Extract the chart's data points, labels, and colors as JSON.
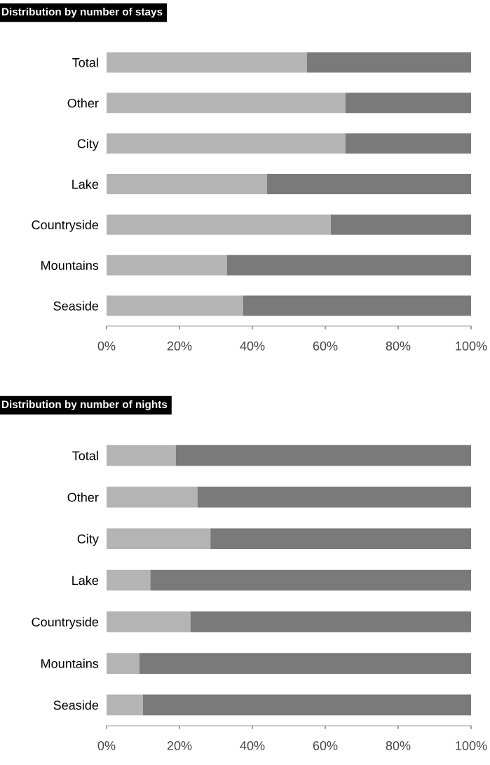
{
  "chart_data": [
    {
      "type": "bar",
      "orientation": "horizontal",
      "stacked": true,
      "title": "Distribution by number of stays",
      "categories": [
        "Total",
        "Other",
        "City",
        "Lake",
        "Countryside",
        "Mountains",
        "Seaside"
      ],
      "series": [
        {
          "color": "#b4b4b4",
          "values": [
            55,
            65.5,
            65.5,
            44,
            61.5,
            33,
            37.5
          ]
        },
        {
          "color": "#7a7a7a",
          "values": [
            45,
            34.5,
            34.5,
            56,
            38.5,
            67,
            62.5
          ]
        }
      ],
      "xlim": [
        0,
        100
      ],
      "xticks": [
        {
          "value": 0,
          "label": "0%"
        },
        {
          "value": 20,
          "label": "20%"
        },
        {
          "value": 40,
          "label": "40%"
        },
        {
          "value": 60,
          "label": "60%"
        },
        {
          "value": 80,
          "label": "80%"
        },
        {
          "value": 100,
          "label": "100%"
        }
      ],
      "grid": false,
      "legend": false
    },
    {
      "type": "bar",
      "orientation": "horizontal",
      "stacked": true,
      "title": "Distribution by number of nights",
      "categories": [
        "Total",
        "Other",
        "City",
        "Lake",
        "Countryside",
        "Mountains",
        "Seaside"
      ],
      "series": [
        {
          "color": "#b4b4b4",
          "values": [
            19,
            25,
            28.5,
            12,
            23,
            9,
            10
          ]
        },
        {
          "color": "#7a7a7a",
          "values": [
            81,
            75,
            71.5,
            88,
            77,
            91,
            90
          ]
        }
      ],
      "xlim": [
        0,
        100
      ],
      "xticks": [
        {
          "value": 0,
          "label": "0%"
        },
        {
          "value": 20,
          "label": "20%"
        },
        {
          "value": 40,
          "label": "40%"
        },
        {
          "value": 60,
          "label": "60%"
        },
        {
          "value": 80,
          "label": "80%"
        },
        {
          "value": 100,
          "label": "100%"
        }
      ],
      "grid": false,
      "legend": false
    }
  ]
}
